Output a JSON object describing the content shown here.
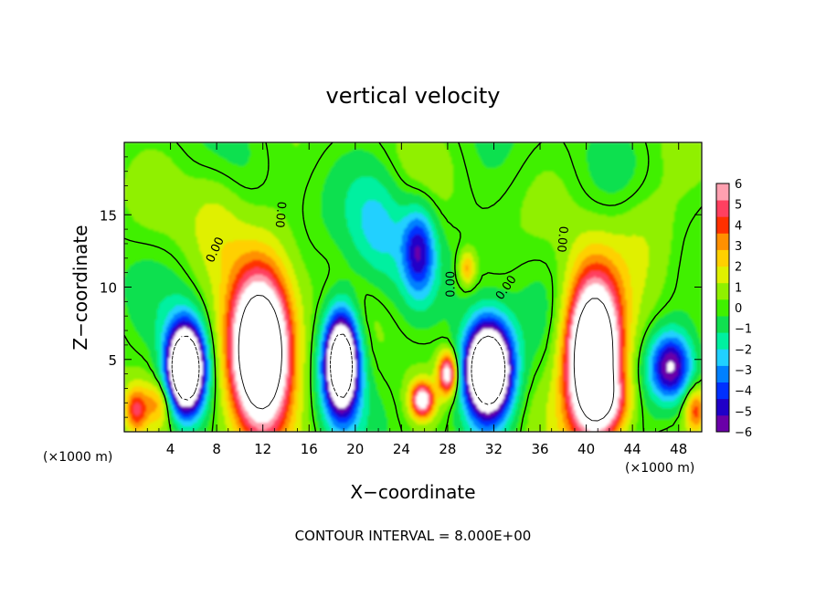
{
  "chart_data": {
    "type": "heatmap",
    "title": "vertical velocity",
    "xlabel": "X−coordinate",
    "ylabel": "Z−coordinate",
    "xunit_left": "(×1000 m)",
    "xunit_right": "(×1000 m)",
    "footer": "CONTOUR INTERVAL = 8.000E+00",
    "xlim": [
      0,
      50
    ],
    "ylim": [
      0,
      20
    ],
    "x_ticks": [
      4,
      8,
      12,
      16,
      20,
      24,
      28,
      32,
      36,
      40,
      44,
      48
    ],
    "x_tick_labels": [
      "4",
      "8",
      "12",
      "16",
      "20",
      "24",
      "28",
      "32",
      "36",
      "40",
      "44",
      "48"
    ],
    "y_ticks": [
      5,
      10,
      15
    ],
    "y_tick_labels": [
      "5",
      "10",
      "15"
    ],
    "colorbar": {
      "min": -6,
      "max": 6,
      "ticks": [
        6,
        5,
        4,
        3,
        2,
        1,
        0,
        -1,
        -2,
        -3,
        -4,
        -5,
        -6
      ],
      "tick_labels": [
        "6",
        "5",
        "4",
        "3",
        "2",
        "1",
        "0",
        "−1",
        "−2",
        "−3",
        "−4",
        "−5",
        "−6"
      ],
      "colors": [
        "#6a00a8",
        "#2000c8",
        "#0030ff",
        "#0080ff",
        "#20d0ff",
        "#00f0a0",
        "#10e050",
        "#40f000",
        "#90f000",
        "#e0f000",
        "#ffd000",
        "#ff9000",
        "#ff3000",
        "#ff4060",
        "#ffa0b0"
      ]
    },
    "contour_labels": [
      {
        "text": "0.00",
        "x": 7.8,
        "z": 12.6,
        "rotate": -65
      },
      {
        "text": "0.00",
        "x": 13.6,
        "z": 15.0,
        "rotate": 95
      },
      {
        "text": "0.00",
        "x": 28.2,
        "z": 10.2,
        "rotate": -90
      },
      {
        "text": "0.00",
        "x": 33.0,
        "z": 10.0,
        "rotate": -55
      },
      {
        "text": "0.00",
        "x": 38.0,
        "z": 13.3,
        "rotate": 95
      }
    ],
    "features": [
      {
        "x": 11.8,
        "z": 5.5,
        "rx": 2.6,
        "rz": 5.2,
        "w": 14
      },
      {
        "x": 40.6,
        "z": 5.2,
        "rx": 2.3,
        "rz": 5.2,
        "w": 14
      },
      {
        "x": 5.3,
        "z": 4.3,
        "rx": 1.6,
        "rz": 3.0,
        "w": -14
      },
      {
        "x": 18.8,
        "z": 4.8,
        "rx": 1.5,
        "rz": 3.5,
        "w": -12
      },
      {
        "x": 31.5,
        "z": 4.3,
        "rx": 2.0,
        "rz": 3.2,
        "w": -14
      },
      {
        "x": 47.3,
        "z": 4.5,
        "rx": 1.8,
        "rz": 2.3,
        "w": -6
      },
      {
        "x": 28.0,
        "z": 4.0,
        "rx": 0.8,
        "rz": 1.4,
        "w": 7
      },
      {
        "x": 25.8,
        "z": 2.2,
        "rx": 1.0,
        "rz": 1.2,
        "w": 7
      },
      {
        "x": 1.0,
        "z": 1.5,
        "rx": 1.0,
        "rz": 1.6,
        "w": 4
      },
      {
        "x": 49.5,
        "z": 1.5,
        "rx": 1.0,
        "rz": 1.6,
        "w": 4
      },
      {
        "x": 25.5,
        "z": 12.5,
        "rx": 1.4,
        "rz": 3.0,
        "w": -4.5
      },
      {
        "x": 22.0,
        "z": 14.0,
        "rx": 2.5,
        "rz": 4.0,
        "w": -2
      },
      {
        "x": 29.7,
        "z": 11.3,
        "rx": 0.7,
        "rz": 1.2,
        "w": 3
      },
      {
        "x": 3.0,
        "z": 2.0,
        "rx": 1.2,
        "rz": 1.5,
        "w": 2.5
      },
      {
        "x": 42.0,
        "z": 2.0,
        "rx": 2.0,
        "rz": 2.0,
        "w": 3
      },
      {
        "x": 8.0,
        "z": 15.0,
        "rx": 2.5,
        "rz": 4.0,
        "w": 1.5
      },
      {
        "x": 45.0,
        "z": 14.0,
        "rx": 3.0,
        "rz": 4.0,
        "w": 1.2
      }
    ]
  }
}
